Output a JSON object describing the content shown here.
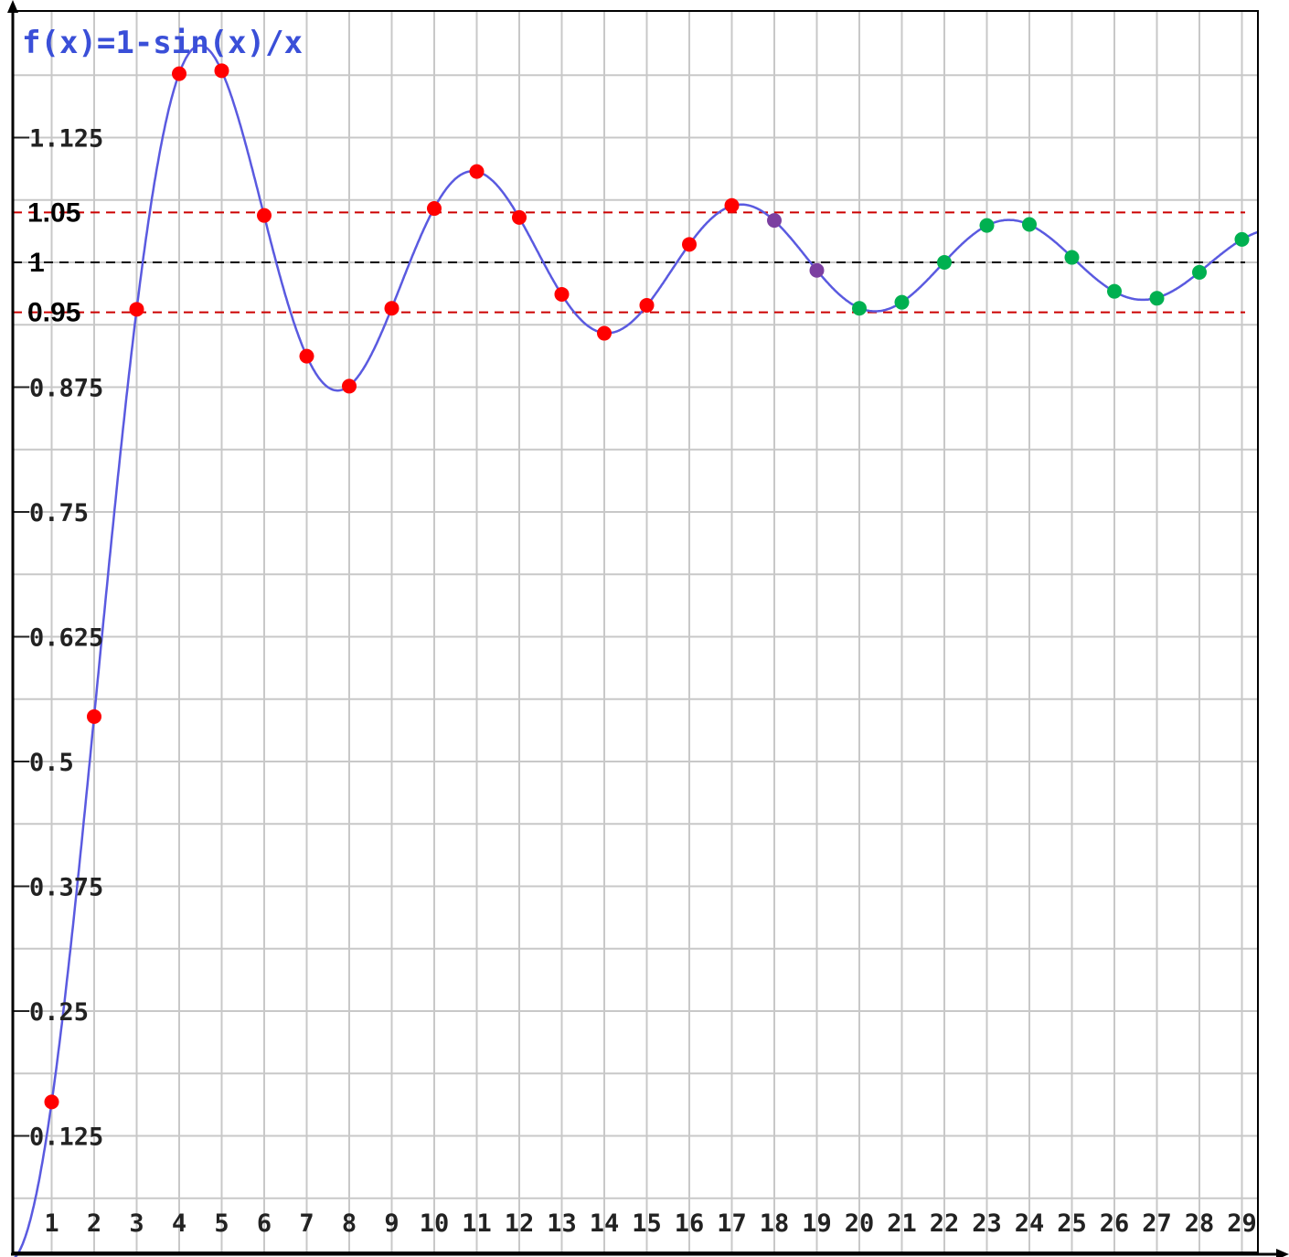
{
  "chart_data": {
    "type": "line",
    "title": "f(x)=1-sin(x)/x",
    "function": "1-sin(x)/x",
    "xlim": [
      0,
      29.4
    ],
    "ylim": [
      0.0,
      1.2
    ],
    "x_ticks": [
      1,
      2,
      3,
      4,
      5,
      6,
      7,
      8,
      9,
      10,
      11,
      12,
      13,
      14,
      15,
      16,
      17,
      18,
      19,
      20,
      21,
      22,
      23,
      24,
      25,
      26,
      27,
      28,
      29
    ],
    "x_tick_labels": [
      "1",
      "2",
      "3",
      "4",
      "5",
      "6",
      "7",
      "8",
      "9",
      "10",
      "11",
      "12",
      "13",
      "14",
      "15",
      "16",
      "17",
      "18",
      "19",
      "20",
      "21",
      "22",
      "23",
      "24",
      "25",
      "26",
      "27",
      "28",
      "29"
    ],
    "y_ticks": [
      0.125,
      0.25,
      0.375,
      0.5,
      0.625,
      0.75,
      0.875,
      1.125
    ],
    "y_tick_labels": [
      "0.125",
      "0.25",
      "0.375",
      "0.5",
      "0.625",
      "0.75",
      "0.875",
      "1.125"
    ],
    "grid": true,
    "curve_color": "#5a5ae0",
    "reference_lines": [
      {
        "y": 1.05,
        "label": "1.05",
        "color": "#cc0000",
        "style": "dashed"
      },
      {
        "y": 1.0,
        "label": "1",
        "color": "#000000",
        "style": "dashed"
      },
      {
        "y": 0.95,
        "label": "0.95",
        "color": "#cc0000",
        "style": "dashed"
      }
    ],
    "points": [
      {
        "x": 1,
        "y": 0.159,
        "color": "#ff0000"
      },
      {
        "x": 2,
        "y": 0.545,
        "color": "#ff0000"
      },
      {
        "x": 3,
        "y": 0.953,
        "color": "#ff0000"
      },
      {
        "x": 4,
        "y": 1.189,
        "color": "#ff0000"
      },
      {
        "x": 5,
        "y": 1.192,
        "color": "#ff0000"
      },
      {
        "x": 6,
        "y": 1.047,
        "color": "#ff0000"
      },
      {
        "x": 7,
        "y": 0.906,
        "color": "#ff0000"
      },
      {
        "x": 8,
        "y": 0.876,
        "color": "#ff0000"
      },
      {
        "x": 9,
        "y": 0.954,
        "color": "#ff0000"
      },
      {
        "x": 10,
        "y": 1.054,
        "color": "#ff0000"
      },
      {
        "x": 11,
        "y": 1.091,
        "color": "#ff0000"
      },
      {
        "x": 12,
        "y": 1.045,
        "color": "#ff0000"
      },
      {
        "x": 13,
        "y": 0.968,
        "color": "#ff0000"
      },
      {
        "x": 14,
        "y": 0.929,
        "color": "#ff0000"
      },
      {
        "x": 15,
        "y": 0.957,
        "color": "#ff0000"
      },
      {
        "x": 16,
        "y": 1.018,
        "color": "#ff0000"
      },
      {
        "x": 17,
        "y": 1.057,
        "color": "#ff0000"
      },
      {
        "x": 18,
        "y": 1.042,
        "color": "#7b3fa0"
      },
      {
        "x": 19,
        "y": 0.992,
        "color": "#7b3fa0"
      },
      {
        "x": 20,
        "y": 0.954,
        "color": "#00b050"
      },
      {
        "x": 21,
        "y": 0.96,
        "color": "#00b050"
      },
      {
        "x": 22,
        "y": 1.0,
        "color": "#00b050"
      },
      {
        "x": 23,
        "y": 1.037,
        "color": "#00b050"
      },
      {
        "x": 24,
        "y": 1.038,
        "color": "#00b050"
      },
      {
        "x": 25,
        "y": 1.005,
        "color": "#00b050"
      },
      {
        "x": 26,
        "y": 0.971,
        "color": "#00b050"
      },
      {
        "x": 27,
        "y": 0.964,
        "color": "#00b050"
      },
      {
        "x": 28,
        "y": 0.99,
        "color": "#00b050"
      },
      {
        "x": 29,
        "y": 1.023,
        "color": "#00b050"
      }
    ]
  }
}
